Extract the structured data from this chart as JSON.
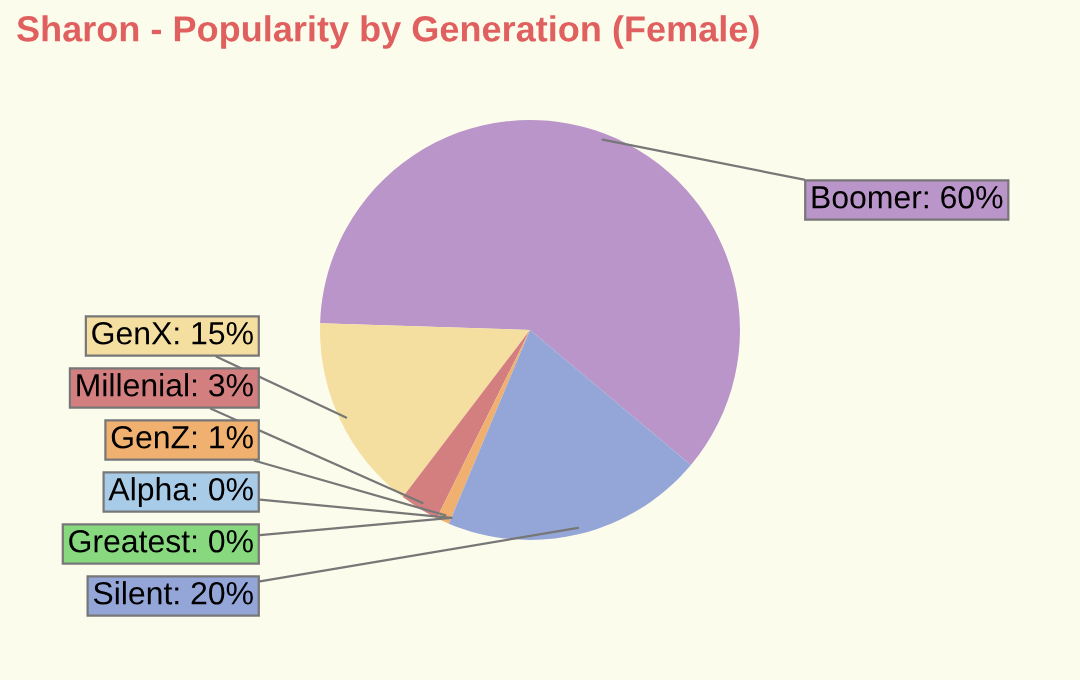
{
  "chart_data": {
    "type": "pie",
    "title": "Sharon - Popularity by Generation (Female)",
    "categories": [
      "Boomer: 60%",
      "GenX: 15%",
      "Millenial: 3%",
      "GenZ: 1%",
      "Alpha: 0%",
      "Greatest: 0%",
      "Silent: 20%"
    ],
    "values": [
      60,
      15,
      3,
      1,
      0,
      0,
      20
    ],
    "colors": [
      "#b995c9",
      "#f5dfa0",
      "#d47f7f",
      "#f0b070",
      "#a8cbe8",
      "#88d880",
      "#94a5d8"
    ]
  }
}
